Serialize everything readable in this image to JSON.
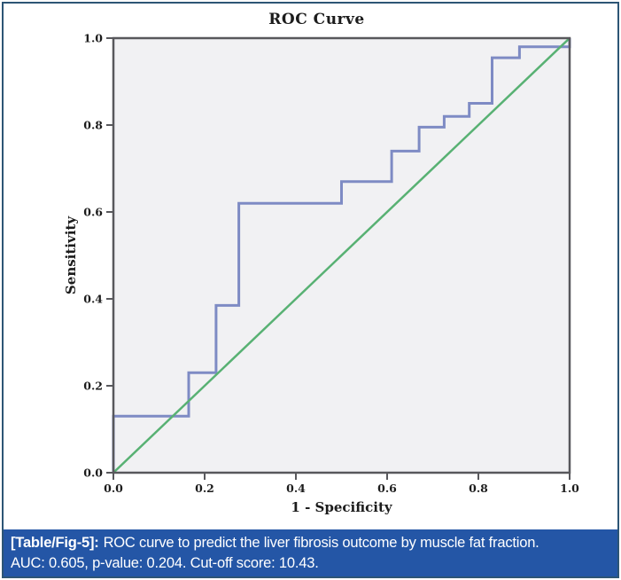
{
  "figure": {
    "title": "ROC Curve",
    "x_axis": {
      "label": "1 - Specificity",
      "ticks": [
        "0.0",
        "0.2",
        "0.4",
        "0.6",
        "0.8",
        "1.0"
      ],
      "range": [
        0,
        1
      ]
    },
    "y_axis": {
      "label": "Sensitivity",
      "ticks": [
        "0.0",
        "0.2",
        "0.4",
        "0.6",
        "0.8",
        "1.0"
      ],
      "range": [
        0,
        1
      ]
    },
    "colors": {
      "roc_curve": "#7e8bc4",
      "reference_line": "#58b173",
      "plot_background": "#f1f1f3",
      "frame": "#58585c",
      "tick_text": "#1c1c1c",
      "caption_background": "#2456a6",
      "outer_border": "#2d5575"
    }
  },
  "chart_data": {
    "type": "line",
    "title": "ROC Curve",
    "xlabel": "1 - Specificity",
    "ylabel": "Sensitivity",
    "xlim": [
      0,
      1
    ],
    "ylim": [
      0,
      1
    ],
    "grid": false,
    "legend": "none",
    "series": [
      {
        "name": "ROC curve (muscle fat fraction)",
        "style": "step",
        "color": "#7e8bc4",
        "width": 3,
        "points": [
          [
            0,
            0
          ],
          [
            0,
            0.13
          ],
          [
            0.165,
            0.13
          ],
          [
            0.165,
            0.23
          ],
          [
            0.225,
            0.23
          ],
          [
            0.225,
            0.385
          ],
          [
            0.275,
            0.385
          ],
          [
            0.275,
            0.62
          ],
          [
            0.5,
            0.62
          ],
          [
            0.5,
            0.67
          ],
          [
            0.61,
            0.67
          ],
          [
            0.61,
            0.74
          ],
          [
            0.67,
            0.74
          ],
          [
            0.67,
            0.795
          ],
          [
            0.725,
            0.795
          ],
          [
            0.725,
            0.82
          ],
          [
            0.78,
            0.82
          ],
          [
            0.78,
            0.85
          ],
          [
            0.83,
            0.85
          ],
          [
            0.83,
            0.955
          ],
          [
            0.89,
            0.955
          ],
          [
            0.89,
            0.98
          ],
          [
            1,
            0.98
          ],
          [
            1,
            1
          ]
        ]
      },
      {
        "name": "Reference diagonal",
        "style": "line",
        "color": "#58b173",
        "width": 2.5,
        "points": [
          [
            0,
            0
          ],
          [
            1,
            1
          ]
        ]
      }
    ],
    "stats": {
      "AUC": 0.605,
      "p_value": 0.204,
      "cutoff_score": 10.43
    }
  },
  "caption": {
    "label": "[Table/Fig-5]:",
    "text": "ROC curve to predict the liver fibrosis outcome by muscle fat fraction.",
    "line2": "AUC: 0.605, p-value: 0.204. Cut-off score: 10.43."
  }
}
